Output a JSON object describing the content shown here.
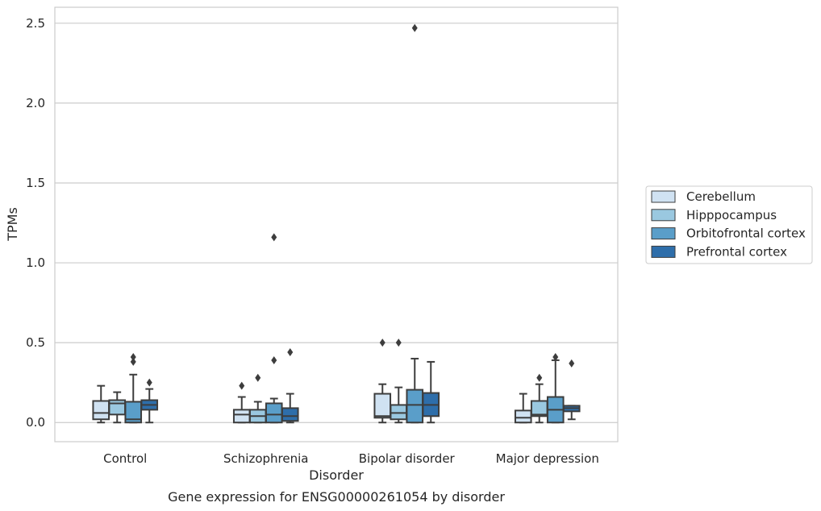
{
  "caption": "Gene expression for ENSG00000261054 by disorder",
  "chart_data": {
    "type": "box",
    "title": "",
    "xlabel": "Disorder",
    "ylabel": "TPMs",
    "ylim": [
      -0.12,
      2.6
    ],
    "yticks": [
      0.0,
      0.5,
      1.0,
      1.5,
      2.0,
      2.5
    ],
    "ytick_labels": [
      "0.0",
      "0.5",
      "1.0",
      "1.5",
      "2.0",
      "2.5"
    ],
    "grid": "horizontal",
    "legend_position": "right",
    "categories": [
      "Control",
      "Schizophrenia",
      "Bipolar disorder",
      "Major depression"
    ],
    "series": [
      {
        "name": "Cerebellum",
        "color": "#d0e2f2",
        "boxes": [
          {
            "whislo": 0.0,
            "q1": 0.02,
            "med": 0.06,
            "q3": 0.135,
            "whishi": 0.23,
            "fliers": []
          },
          {
            "whislo": 0.0,
            "q1": 0.0,
            "med": 0.05,
            "q3": 0.08,
            "whishi": 0.16,
            "fliers": [
              0.23
            ]
          },
          {
            "whislo": 0.0,
            "q1": 0.03,
            "med": 0.04,
            "q3": 0.18,
            "whishi": 0.24,
            "fliers": [
              0.5
            ]
          },
          {
            "whislo": 0.0,
            "q1": 0.0,
            "med": 0.03,
            "q3": 0.075,
            "whishi": 0.18,
            "fliers": []
          }
        ]
      },
      {
        "name": "Hipppocampus",
        "color": "#9ac8e0",
        "boxes": [
          {
            "whislo": 0.0,
            "q1": 0.05,
            "med": 0.12,
            "q3": 0.14,
            "whishi": 0.19,
            "fliers": []
          },
          {
            "whislo": 0.0,
            "q1": 0.0,
            "med": 0.04,
            "q3": 0.08,
            "whishi": 0.13,
            "fliers": [
              0.28
            ]
          },
          {
            "whislo": 0.0,
            "q1": 0.02,
            "med": 0.06,
            "q3": 0.11,
            "whishi": 0.22,
            "fliers": [
              0.5
            ]
          },
          {
            "whislo": 0.0,
            "q1": 0.04,
            "med": 0.05,
            "q3": 0.135,
            "whishi": 0.24,
            "fliers": [
              0.28
            ]
          }
        ]
      },
      {
        "name": "Orbitofrontal cortex",
        "color": "#5a9ec9",
        "boxes": [
          {
            "whislo": 0.0,
            "q1": 0.0,
            "med": 0.02,
            "q3": 0.13,
            "whishi": 0.3,
            "fliers": [
              0.38,
              0.41
            ]
          },
          {
            "whislo": 0.0,
            "q1": 0.0,
            "med": 0.05,
            "q3": 0.12,
            "whishi": 0.15,
            "fliers": [
              0.39,
              1.16
            ]
          },
          {
            "whislo": 0.0,
            "q1": 0.0,
            "med": 0.11,
            "q3": 0.205,
            "whishi": 0.4,
            "fliers": [
              2.47
            ]
          },
          {
            "whislo": 0.0,
            "q1": 0.0,
            "med": 0.08,
            "q3": 0.16,
            "whishi": 0.39,
            "fliers": [
              0.41
            ]
          }
        ]
      },
      {
        "name": "Prefrontal cortex",
        "color": "#2e6eaa",
        "boxes": [
          {
            "whislo": 0.0,
            "q1": 0.08,
            "med": 0.11,
            "q3": 0.14,
            "whishi": 0.21,
            "fliers": [
              0.25
            ]
          },
          {
            "whislo": 0.0,
            "q1": 0.01,
            "med": 0.04,
            "q3": 0.09,
            "whishi": 0.18,
            "fliers": [
              0.44
            ]
          },
          {
            "whislo": 0.0,
            "q1": 0.04,
            "med": 0.11,
            "q3": 0.185,
            "whishi": 0.38,
            "fliers": []
          },
          {
            "whislo": 0.02,
            "q1": 0.07,
            "med": 0.09,
            "q3": 0.105,
            "whishi": 0.105,
            "fliers": [
              0.37
            ]
          }
        ]
      }
    ]
  }
}
